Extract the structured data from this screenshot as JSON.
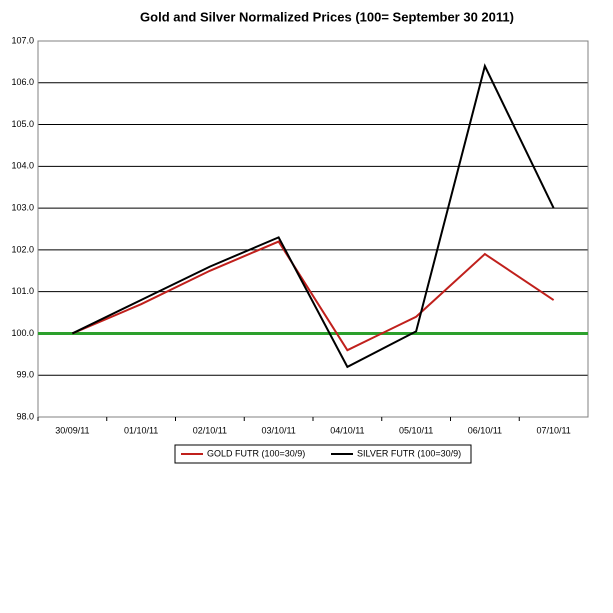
{
  "chart_data": {
    "type": "line",
    "title": "Gold and Silver Normalized Prices  (100= September 30 2011)",
    "categories": [
      "30/09/11",
      "01/10/11",
      "02/10/11",
      "03/10/11",
      "04/10/11",
      "05/10/11",
      "06/10/11",
      "07/10/11"
    ],
    "series": [
      {
        "name": "GOLD  FUTR (100=30/9)",
        "color": "#c0201c",
        "values": [
          100.0,
          100.7,
          101.5,
          102.2,
          99.6,
          100.4,
          101.9,
          100.8
        ]
      },
      {
        "name": "SILVER  FUTR (100=30/9)",
        "color": "#000000",
        "values": [
          100.0,
          100.8,
          101.6,
          102.3,
          99.2,
          100.05,
          106.4,
          103.0
        ]
      }
    ],
    "reference_line": {
      "value": 100,
      "color": "#2ca02c"
    },
    "ylim": [
      98,
      107
    ],
    "yticks": [
      {
        "value": 98,
        "label": "98.0"
      },
      {
        "value": 99,
        "label": "99.0"
      },
      {
        "value": 100,
        "label": "100.0"
      },
      {
        "value": 101,
        "label": "101.0"
      },
      {
        "value": 102,
        "label": "102.0"
      },
      {
        "value": 103,
        "label": "103.0"
      },
      {
        "value": 104,
        "label": "104.0"
      },
      {
        "value": 105,
        "label": "105.0"
      },
      {
        "value": 106,
        "label": "106.0"
      },
      {
        "value": 107,
        "label": "107.0"
      }
    ],
    "grid": true,
    "legend": "bottom"
  }
}
